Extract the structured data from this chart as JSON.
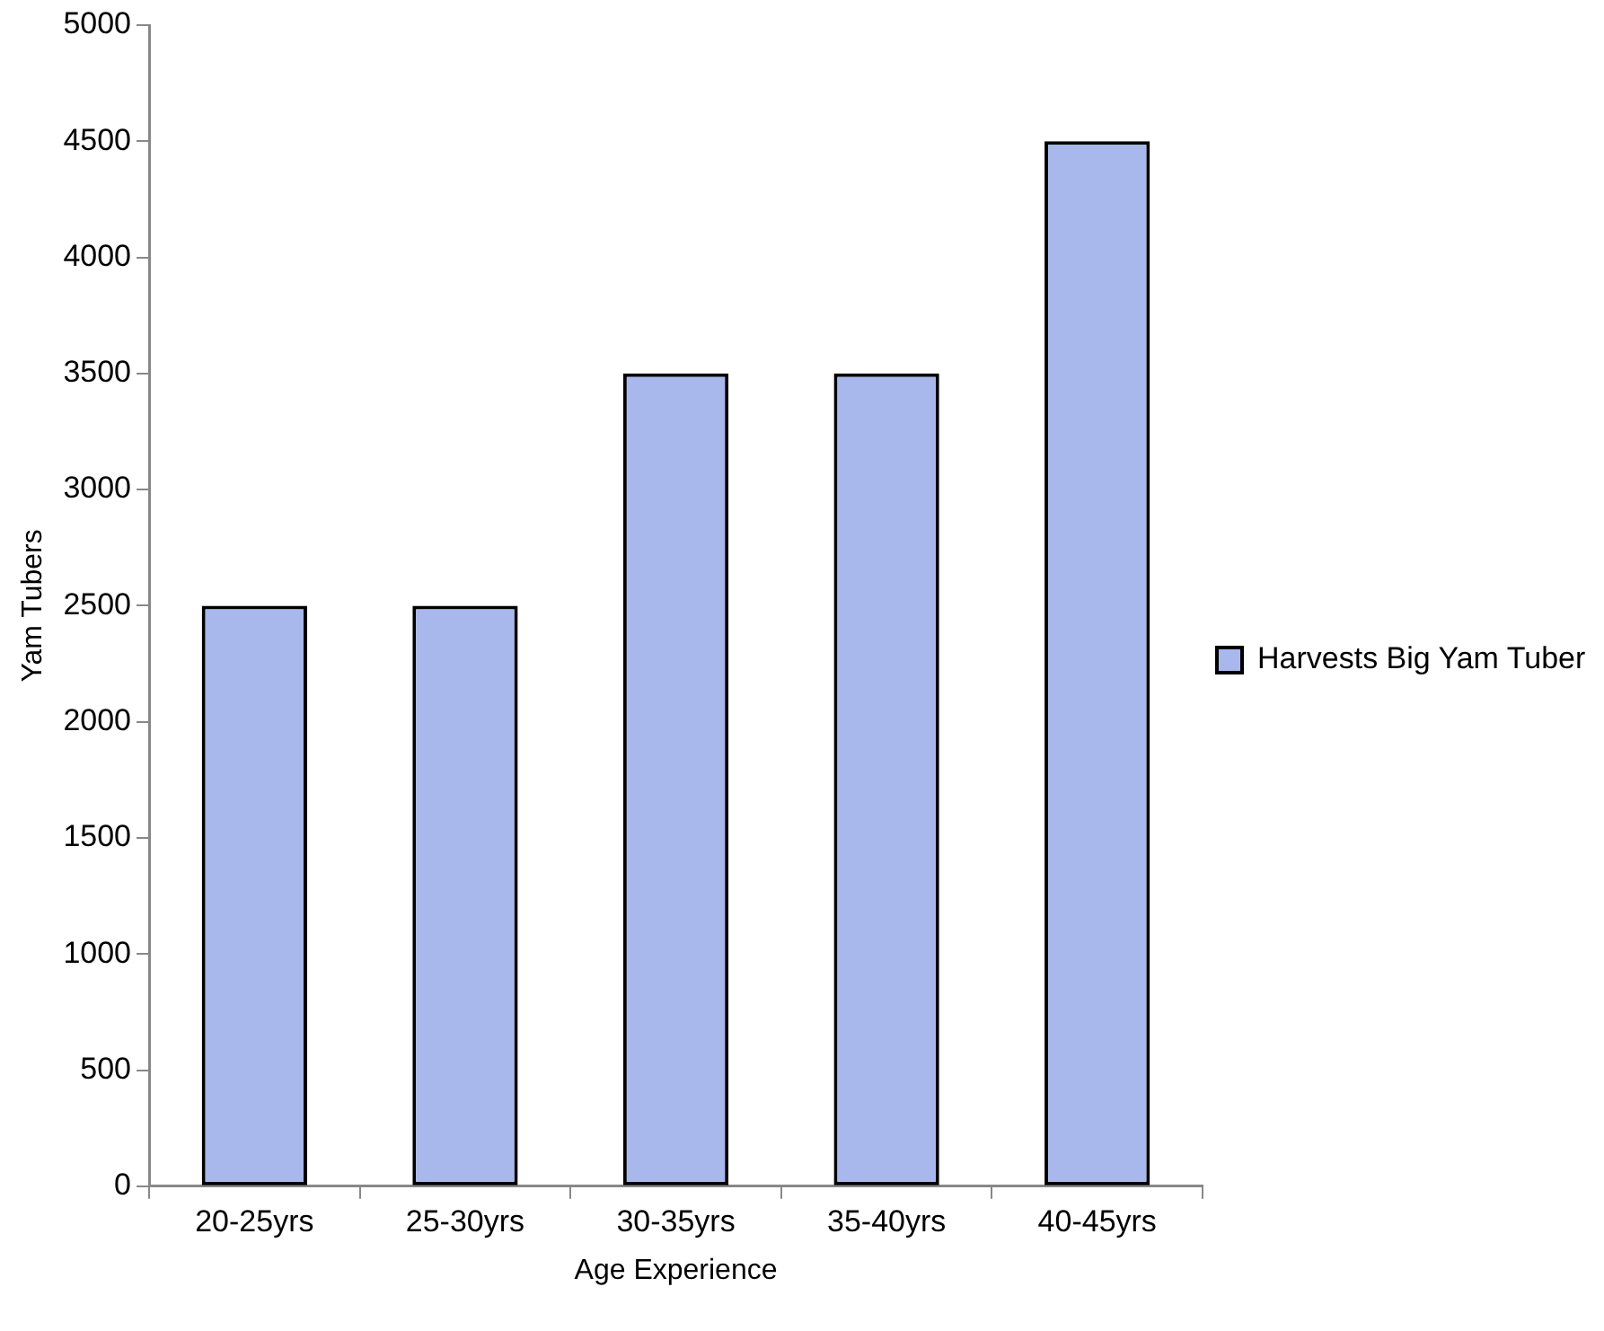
{
  "chart_data": {
    "type": "bar",
    "xlabel": "Age Experience",
    "ylabel": "Yam Tubers",
    "categories": [
      "20-25yrs",
      "25-30yrs",
      "30-35yrs",
      "35-40yrs",
      "40-45yrs"
    ],
    "series": [
      {
        "name": "Harvests Big Yam Tuber",
        "color": "#a9b8ec",
        "values": [
          2500,
          2500,
          3500,
          3500,
          4500
        ]
      }
    ],
    "ylim": [
      0,
      5000
    ],
    "yticks": [
      0,
      500,
      1000,
      1500,
      2000,
      2500,
      3000,
      3500,
      4000,
      4500,
      5000
    ],
    "legend": "right"
  }
}
